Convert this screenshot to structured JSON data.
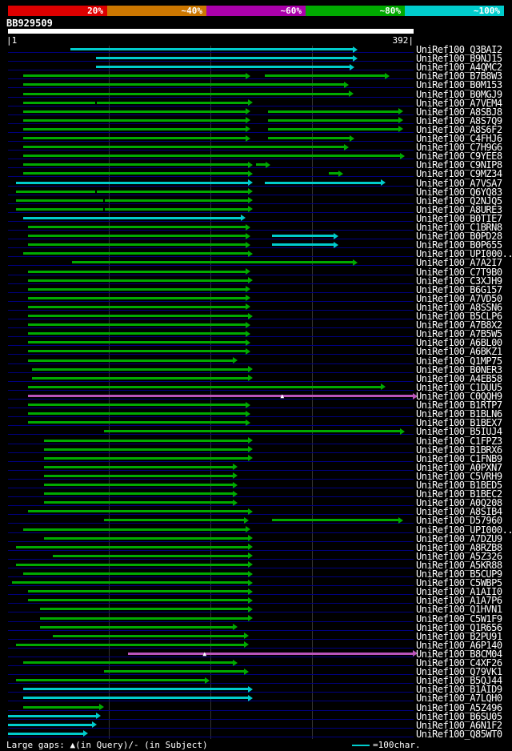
{
  "header": {
    "query_id": "BB929509",
    "ruler_start": "|1",
    "ruler_end": "392|"
  },
  "scale": {
    "segments": [
      {
        "label": "20%",
        "color": "#dd0000"
      },
      {
        "label": "~40%",
        "color": "#cc7700"
      },
      {
        "label": "~60%",
        "color": "#aa00aa"
      },
      {
        "label": "~80%",
        "color": "#00aa00"
      },
      {
        "label": "~100%",
        "color": "#00cccc"
      }
    ]
  },
  "colors": {
    "green": "#00aa00",
    "cyan": "#00cccc",
    "magenta": "#bb55bb",
    "row_line": "#000080",
    "query_bar": "#ffffff",
    "background": "#000000",
    "grid": "#333333",
    "text": "#ffffff"
  },
  "footer": {
    "gaps_label": "Large gaps: ▲(in Query)/- (in Subject)",
    "unit_label": "=100char."
  },
  "chart_data": {
    "type": "alignment",
    "title": "BLAST-style graphical overview of hits vs query BB929509",
    "query_id": "BB929509",
    "query_length": 392,
    "axis": {
      "start": 1,
      "end": 392
    },
    "grid": "quarter vertical gridlines",
    "legend_position": "top",
    "color_legend": {
      "magenta": "~60% identity",
      "green": "~80% identity",
      "cyan": "~100% identity"
    },
    "marker_glyphs": {
      "query-gap": "▲"
    },
    "rows": [
      {
        "label": "UniRef100_Q3BAI2",
        "segments": [
          {
            "start": 60,
            "end": 333,
            "color": "cyan"
          }
        ]
      },
      {
        "label": "UniRef100_B9NJ15",
        "segments": [
          {
            "start": 85,
            "end": 333,
            "color": "cyan"
          }
        ]
      },
      {
        "label": "UniRef100_A4QMC2",
        "segments": [
          {
            "start": 85,
            "end": 330,
            "color": "cyan"
          }
        ]
      },
      {
        "label": "UniRef100_B7B8W3",
        "segments": [
          {
            "start": 15,
            "end": 230,
            "color": "green"
          },
          {
            "start": 248,
            "end": 364,
            "color": "green"
          }
        ]
      },
      {
        "label": "UniRef100_B0M153",
        "segments": [
          {
            "start": 15,
            "end": 325,
            "color": "green"
          }
        ]
      },
      {
        "label": "UniRef100_B0MGJ9",
        "segments": [
          {
            "start": 15,
            "end": 329,
            "color": "green"
          }
        ]
      },
      {
        "label": "UniRef100_A7VEM4",
        "segments": [
          {
            "start": 15,
            "end": 232,
            "color": "green"
          }
        ],
        "markers": [
          {
            "pos": 85,
            "type": "subject-gap"
          }
        ]
      },
      {
        "label": "UniRef100_A8SBJ8",
        "segments": [
          {
            "start": 15,
            "end": 230,
            "color": "green"
          },
          {
            "start": 251,
            "end": 377,
            "color": "green"
          }
        ]
      },
      {
        "label": "UniRef100_A8S7Q9",
        "segments": [
          {
            "start": 15,
            "end": 230,
            "color": "green"
          },
          {
            "start": 251,
            "end": 377,
            "color": "green"
          }
        ]
      },
      {
        "label": "UniRef100_A8S6F2",
        "segments": [
          {
            "start": 15,
            "end": 230,
            "color": "green"
          },
          {
            "start": 251,
            "end": 377,
            "color": "green"
          }
        ]
      },
      {
        "label": "UniRef100_C4FHJ6",
        "segments": [
          {
            "start": 15,
            "end": 230,
            "color": "green"
          },
          {
            "start": 251,
            "end": 330,
            "color": "green"
          }
        ]
      },
      {
        "label": "UniRef100_C7H9G6",
        "segments": [
          {
            "start": 15,
            "end": 325,
            "color": "green"
          }
        ]
      },
      {
        "label": "UniRef100_C9YEE8",
        "segments": [
          {
            "start": 15,
            "end": 379,
            "color": "green"
          }
        ]
      },
      {
        "label": "UniRef100_C9NIP8",
        "segments": [
          {
            "start": 15,
            "end": 232,
            "color": "green"
          },
          {
            "start": 240,
            "end": 249,
            "color": "green"
          }
        ]
      },
      {
        "label": "UniRef100_C9MZ34",
        "segments": [
          {
            "start": 15,
            "end": 232,
            "color": "green"
          },
          {
            "start": 310,
            "end": 319,
            "color": "green"
          }
        ]
      },
      {
        "label": "UniRef100_A7VSA7",
        "segments": [
          {
            "start": 8,
            "end": 232,
            "color": "cyan"
          },
          {
            "start": 248,
            "end": 360,
            "color": "cyan"
          }
        ]
      },
      {
        "label": "UniRef100_Q6YQ83",
        "segments": [
          {
            "start": 8,
            "end": 232,
            "color": "green"
          }
        ],
        "markers": [
          {
            "pos": 85,
            "type": "subject-gap"
          }
        ]
      },
      {
        "label": "UniRef100_Q2NJQ5",
        "segments": [
          {
            "start": 8,
            "end": 232,
            "color": "green"
          }
        ],
        "markers": [
          {
            "pos": 93,
            "type": "subject-gap"
          }
        ]
      },
      {
        "label": "UniRef100_A8URE3",
        "segments": [
          {
            "start": 8,
            "end": 232,
            "color": "green"
          }
        ],
        "markers": [
          {
            "pos": 93,
            "type": "subject-gap"
          }
        ]
      },
      {
        "label": "UniRef100_B0TIE7",
        "segments": [
          {
            "start": 15,
            "end": 225,
            "color": "cyan"
          }
        ]
      },
      {
        "label": "UniRef100_C1BRN8",
        "segments": [
          {
            "start": 19,
            "end": 230,
            "color": "green"
          }
        ]
      },
      {
        "label": "UniRef100_B0PD28",
        "segments": [
          {
            "start": 19,
            "end": 230,
            "color": "green"
          },
          {
            "start": 255,
            "end": 315,
            "color": "cyan"
          }
        ]
      },
      {
        "label": "UniRef100_B0P655",
        "segments": [
          {
            "start": 19,
            "end": 230,
            "color": "green"
          },
          {
            "start": 255,
            "end": 315,
            "color": "cyan"
          }
        ]
      },
      {
        "label": "UniRef100_UPI000...",
        "segments": [
          {
            "start": 15,
            "end": 232,
            "color": "green"
          }
        ]
      },
      {
        "label": "UniRef100_A7A2I7",
        "segments": [
          {
            "start": 62,
            "end": 333,
            "color": "green"
          }
        ]
      },
      {
        "label": "UniRef100_C7T9B0",
        "segments": [
          {
            "start": 19,
            "end": 230,
            "color": "green"
          }
        ]
      },
      {
        "label": "UniRef100_C3XJH9",
        "segments": [
          {
            "start": 19,
            "end": 232,
            "color": "green"
          }
        ]
      },
      {
        "label": "UniRef100_B6G157",
        "segments": [
          {
            "start": 19,
            "end": 230,
            "color": "green"
          }
        ]
      },
      {
        "label": "UniRef100_A7VD50",
        "segments": [
          {
            "start": 19,
            "end": 230,
            "color": "green"
          }
        ]
      },
      {
        "label": "UniRef100_A8SSN6",
        "segments": [
          {
            "start": 19,
            "end": 230,
            "color": "green"
          }
        ]
      },
      {
        "label": "UniRef100_B5CLP6",
        "segments": [
          {
            "start": 19,
            "end": 232,
            "color": "green"
          }
        ]
      },
      {
        "label": "UniRef100_A7B8X2",
        "segments": [
          {
            "start": 19,
            "end": 230,
            "color": "green"
          }
        ]
      },
      {
        "label": "UniRef100_A7B5W5",
        "segments": [
          {
            "start": 19,
            "end": 230,
            "color": "green"
          }
        ]
      },
      {
        "label": "UniRef100_A6BL00",
        "segments": [
          {
            "start": 19,
            "end": 230,
            "color": "green"
          }
        ]
      },
      {
        "label": "UniRef100_A6BKZ1",
        "segments": [
          {
            "start": 19,
            "end": 230,
            "color": "green"
          }
        ]
      },
      {
        "label": "UniRef100_Q1MP75",
        "segments": [
          {
            "start": 19,
            "end": 217,
            "color": "green"
          }
        ]
      },
      {
        "label": "UniRef100_B0NER3",
        "segments": [
          {
            "start": 23,
            "end": 232,
            "color": "green"
          }
        ]
      },
      {
        "label": "UniRef100_A4EB58",
        "segments": [
          {
            "start": 23,
            "end": 232,
            "color": "green"
          }
        ]
      },
      {
        "label": "UniRef100_C1DUU5",
        "segments": [
          {
            "start": 19,
            "end": 360,
            "color": "green"
          }
        ]
      },
      {
        "label": "UniRef100_C0QQH9",
        "segments": [
          {
            "start": 19,
            "end": 391,
            "color": "magenta"
          }
        ],
        "markers": [
          {
            "pos": 265,
            "type": "query-gap"
          }
        ]
      },
      {
        "label": "UniRef100_B1RTP7",
        "segments": [
          {
            "start": 19,
            "end": 230,
            "color": "green"
          }
        ]
      },
      {
        "label": "UniRef100_B1BLN6",
        "segments": [
          {
            "start": 19,
            "end": 230,
            "color": "green"
          }
        ]
      },
      {
        "label": "UniRef100_B1BEX7",
        "segments": [
          {
            "start": 19,
            "end": 230,
            "color": "green"
          }
        ]
      },
      {
        "label": "UniRef100_B5IUJ4",
        "segments": [
          {
            "start": 93,
            "end": 379,
            "color": "green"
          }
        ]
      },
      {
        "label": "UniRef100_C1FPZ3",
        "segments": [
          {
            "start": 35,
            "end": 232,
            "color": "green"
          }
        ]
      },
      {
        "label": "UniRef100_B1BRX6",
        "segments": [
          {
            "start": 35,
            "end": 232,
            "color": "green"
          }
        ]
      },
      {
        "label": "UniRef100_C1FNB9",
        "segments": [
          {
            "start": 35,
            "end": 232,
            "color": "green"
          }
        ]
      },
      {
        "label": "UniRef100_A0PXN7",
        "segments": [
          {
            "start": 35,
            "end": 217,
            "color": "green"
          }
        ]
      },
      {
        "label": "UniRef100_C5VRH9",
        "segments": [
          {
            "start": 35,
            "end": 217,
            "color": "green"
          }
        ]
      },
      {
        "label": "UniRef100_B1BED5",
        "segments": [
          {
            "start": 35,
            "end": 217,
            "color": "green"
          }
        ]
      },
      {
        "label": "UniRef100_B1BEC2",
        "segments": [
          {
            "start": 35,
            "end": 217,
            "color": "green"
          }
        ]
      },
      {
        "label": "UniRef100_A0Q208",
        "segments": [
          {
            "start": 35,
            "end": 217,
            "color": "green"
          }
        ]
      },
      {
        "label": "UniRef100_A8SIB4",
        "segments": [
          {
            "start": 19,
            "end": 232,
            "color": "green"
          }
        ]
      },
      {
        "label": "UniRef100_D57960",
        "segments": [
          {
            "start": 93,
            "end": 228,
            "color": "green"
          },
          {
            "start": 255,
            "end": 377,
            "color": "green"
          }
        ]
      },
      {
        "label": "UniRef100_UPI000...",
        "segments": [
          {
            "start": 15,
            "end": 230,
            "color": "green"
          }
        ]
      },
      {
        "label": "UniRef100_A7DZU9",
        "segments": [
          {
            "start": 35,
            "end": 232,
            "color": "green"
          }
        ]
      },
      {
        "label": "UniRef100_A8RZB8",
        "segments": [
          {
            "start": 8,
            "end": 232,
            "color": "green"
          }
        ]
      },
      {
        "label": "UniRef100_A5Z326",
        "segments": [
          {
            "start": 43,
            "end": 232,
            "color": "green"
          }
        ]
      },
      {
        "label": "UniRef100_A5KR88",
        "segments": [
          {
            "start": 8,
            "end": 232,
            "color": "green"
          }
        ]
      },
      {
        "label": "UniRef100_B5CUP9",
        "segments": [
          {
            "start": 15,
            "end": 232,
            "color": "green"
          }
        ]
      },
      {
        "label": "UniRef100_C5WBP5",
        "segments": [
          {
            "start": 4,
            "end": 232,
            "color": "green"
          }
        ]
      },
      {
        "label": "UniRef100_A1AII0",
        "segments": [
          {
            "start": 19,
            "end": 232,
            "color": "green"
          }
        ]
      },
      {
        "label": "UniRef100_A1A7P6",
        "segments": [
          {
            "start": 19,
            "end": 232,
            "color": "green"
          }
        ]
      },
      {
        "label": "UniRef100_Q1HVN1",
        "segments": [
          {
            "start": 31,
            "end": 232,
            "color": "green"
          }
        ]
      },
      {
        "label": "UniRef100_C5W1F9",
        "segments": [
          {
            "start": 31,
            "end": 232,
            "color": "green"
          }
        ]
      },
      {
        "label": "UniRef100_Q1R656",
        "segments": [
          {
            "start": 31,
            "end": 217,
            "color": "green"
          }
        ]
      },
      {
        "label": "UniRef100_B2PU91",
        "segments": [
          {
            "start": 43,
            "end": 228,
            "color": "green"
          }
        ]
      },
      {
        "label": "UniRef100_A6P140",
        "segments": [
          {
            "start": 8,
            "end": 228,
            "color": "green"
          }
        ]
      },
      {
        "label": "UniRef100_B8CM04",
        "segments": [
          {
            "start": 116,
            "end": 391,
            "color": "magenta"
          }
        ],
        "markers": [
          {
            "pos": 190,
            "type": "query-gap"
          }
        ]
      },
      {
        "label": "UniRef100_C4XF26",
        "segments": [
          {
            "start": 15,
            "end": 217,
            "color": "green"
          }
        ]
      },
      {
        "label": "UniRef100_Q79VK1",
        "segments": [
          {
            "start": 93,
            "end": 228,
            "color": "green"
          }
        ]
      },
      {
        "label": "UniRef100_B5QJ44",
        "segments": [
          {
            "start": 8,
            "end": 190,
            "color": "green"
          }
        ]
      },
      {
        "label": "UniRef100_B1AID9",
        "segments": [
          {
            "start": 15,
            "end": 232,
            "color": "cyan"
          }
        ]
      },
      {
        "label": "UniRef100_A7LQH0",
        "segments": [
          {
            "start": 15,
            "end": 232,
            "color": "cyan"
          }
        ]
      },
      {
        "label": "UniRef100_A5Z496",
        "segments": [
          {
            "start": 15,
            "end": 88,
            "color": "green"
          }
        ]
      },
      {
        "label": "UniRef100_B6SU05",
        "segments": [
          {
            "start": 0,
            "end": 85,
            "color": "cyan"
          }
        ]
      },
      {
        "label": "UniRef100_A6N1F2",
        "segments": [
          {
            "start": 0,
            "end": 81,
            "color": "cyan"
          }
        ]
      },
      {
        "label": "UniRef100_Q85WT0",
        "segments": [
          {
            "start": 0,
            "end": 73,
            "color": "cyan"
          }
        ]
      }
    ]
  }
}
